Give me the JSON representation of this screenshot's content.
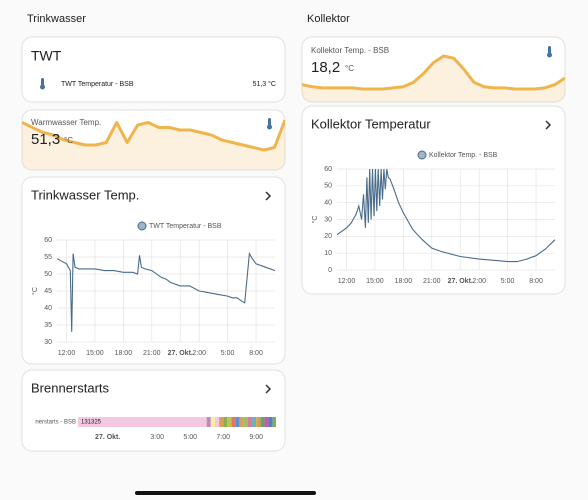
{
  "columns": [
    {
      "title": "Trinkwasser"
    },
    {
      "title": "Kollektor"
    }
  ],
  "twt_card": {
    "title": "TWT",
    "entity": "TWT Temperatur - BSB",
    "state": "51,3 °C"
  },
  "warmwasser_card": {
    "name": "Warmwasser Temp.",
    "value": "51,3",
    "unit": "°C",
    "color": "#f0b44c",
    "values": [
      55,
      53,
      51,
      50,
      48,
      47,
      46,
      46,
      47,
      55,
      47,
      54,
      55,
      53,
      53,
      52,
      52,
      51,
      50,
      48,
      47,
      46,
      45,
      44,
      45,
      56
    ]
  },
  "kollektor_card": {
    "name": "Kollektor Temp. - BSB",
    "value": "18,2",
    "unit": "°C",
    "color": "#f0b44c",
    "values": [
      22,
      20,
      19,
      19,
      19,
      19,
      18,
      18,
      18,
      19,
      20,
      24,
      32,
      42,
      48,
      46,
      36,
      24,
      20,
      19,
      19,
      18,
      18,
      18,
      19,
      22,
      28
    ]
  },
  "trinkwasser_history": {
    "type": "line",
    "title": "Trinkwasser Temp.",
    "y_label": "°C",
    "grid": true,
    "xlim": [
      11,
      34
    ],
    "ylim": [
      30,
      60
    ],
    "yticks": [
      30,
      35,
      40,
      45,
      50,
      55,
      60
    ],
    "xticks": [
      {
        "value": 12,
        "label": "12:00"
      },
      {
        "value": 15,
        "label": "15:00"
      },
      {
        "value": 18,
        "label": "18:00"
      },
      {
        "value": 21,
        "label": "21:00"
      },
      {
        "value": 24,
        "label": "27. Okt."
      },
      {
        "value": 26,
        "label": "2:00"
      },
      {
        "value": 29,
        "label": "5:00"
      },
      {
        "value": 32,
        "label": "8:00"
      }
    ],
    "x": [
      11,
      12,
      12.4,
      12.55,
      12.7,
      12.9,
      13.3,
      14,
      15,
      16,
      17,
      18,
      19,
      19.5,
      19.7,
      19.9,
      20.3,
      21,
      22,
      22.5,
      23,
      24,
      25,
      26,
      27,
      28,
      29,
      29.5,
      30,
      30.5,
      30.8,
      31.3,
      31.6,
      32,
      33,
      34
    ],
    "series": [
      {
        "name": "TWT Temperatur - BSB",
        "color": "#4a6b8a",
        "values": [
          54.5,
          53,
          51,
          33,
          56,
          52,
          51.5,
          51.5,
          51.5,
          51,
          51,
          50.5,
          50.5,
          50,
          55.5,
          52,
          51.5,
          51,
          49,
          48.5,
          47.5,
          46.5,
          46.5,
          45,
          44.5,
          44,
          43.5,
          43,
          43,
          42,
          41.5,
          56,
          54.5,
          53,
          52,
          51
        ]
      }
    ]
  },
  "kollektor_history": {
    "type": "line",
    "title": "Kollektor Temperatur",
    "y_label": "°C",
    "grid": true,
    "xlim": [
      11,
      34
    ],
    "ylim": [
      0,
      60
    ],
    "yticks": [
      0,
      10,
      20,
      30,
      40,
      50,
      60
    ],
    "xticks": [
      {
        "value": 12,
        "label": "12:00"
      },
      {
        "value": 15,
        "label": "15:00"
      },
      {
        "value": 18,
        "label": "18:00"
      },
      {
        "value": 21,
        "label": "21:00"
      },
      {
        "value": 24,
        "label": "27. Okt."
      },
      {
        "value": 26,
        "label": "2:00"
      },
      {
        "value": 29,
        "label": "5:00"
      },
      {
        "value": 32,
        "label": "8:00"
      }
    ],
    "x": [
      11,
      12,
      12.5,
      13,
      13.3,
      13.6,
      13.8,
      14,
      14.15,
      14.3,
      14.45,
      14.6,
      14.75,
      14.9,
      15.05,
      15.2,
      15.35,
      15.5,
      15.65,
      15.8,
      15.95,
      16.1,
      16.25,
      16.4,
      16.6,
      17,
      17.5,
      18,
      19,
      20,
      21,
      22,
      24,
      26,
      28,
      29,
      30,
      31,
      32,
      33,
      34
    ],
    "series": [
      {
        "name": "Kollektor Temp. - BSB",
        "color": "#4a6b8a",
        "values": [
          21,
          25,
          28,
          33,
          38,
          30,
          45,
          25,
          55,
          28,
          60,
          30,
          60,
          32,
          60,
          35,
          60,
          38,
          60,
          42,
          60,
          48,
          60,
          55,
          54,
          48,
          40,
          34,
          24,
          18,
          13,
          11,
          8,
          6.5,
          5.5,
          5,
          5,
          6.5,
          8.5,
          12.5,
          18
        ]
      }
    ]
  },
  "brennerstarts": {
    "title": "Brennerstarts",
    "label": "nerstarts - BSB",
    "xlim": [
      22.2,
      34.2
    ],
    "xticks": [
      {
        "value": 24,
        "label": "27. Okt."
      },
      {
        "value": 27,
        "label": "3:00"
      },
      {
        "value": 29,
        "label": "5:00"
      },
      {
        "value": 31,
        "label": "7:00"
      },
      {
        "value": 33,
        "label": "9:00"
      }
    ],
    "segments": [
      {
        "end": 30,
        "color": "#f3c8e0",
        "label": "131325"
      },
      {
        "end": 30.25,
        "color": "#c08ab8"
      },
      {
        "end": 30.5,
        "color": "#f5f0a0"
      },
      {
        "end": 30.75,
        "color": "#f3c8e0"
      },
      {
        "end": 31,
        "color": "#d9a05b"
      },
      {
        "end": 31.25,
        "color": "#8ab04a"
      },
      {
        "end": 31.5,
        "color": "#c0c060"
      },
      {
        "end": 31.75,
        "color": "#e07a5f"
      },
      {
        "end": 32,
        "color": "#5b8fd9"
      },
      {
        "end": 32.25,
        "color": "#d9a05b"
      },
      {
        "end": 32.5,
        "color": "#a0c060"
      },
      {
        "end": 32.75,
        "color": "#d97a9a"
      },
      {
        "end": 33,
        "color": "#6bb0c0"
      },
      {
        "end": 33.25,
        "color": "#e0a040"
      },
      {
        "end": 33.5,
        "color": "#70a070"
      },
      {
        "end": 33.75,
        "color": "#c060a0"
      },
      {
        "end": 34,
        "color": "#5080c0"
      },
      {
        "end": 34.2,
        "color": "#80b050"
      }
    ]
  }
}
